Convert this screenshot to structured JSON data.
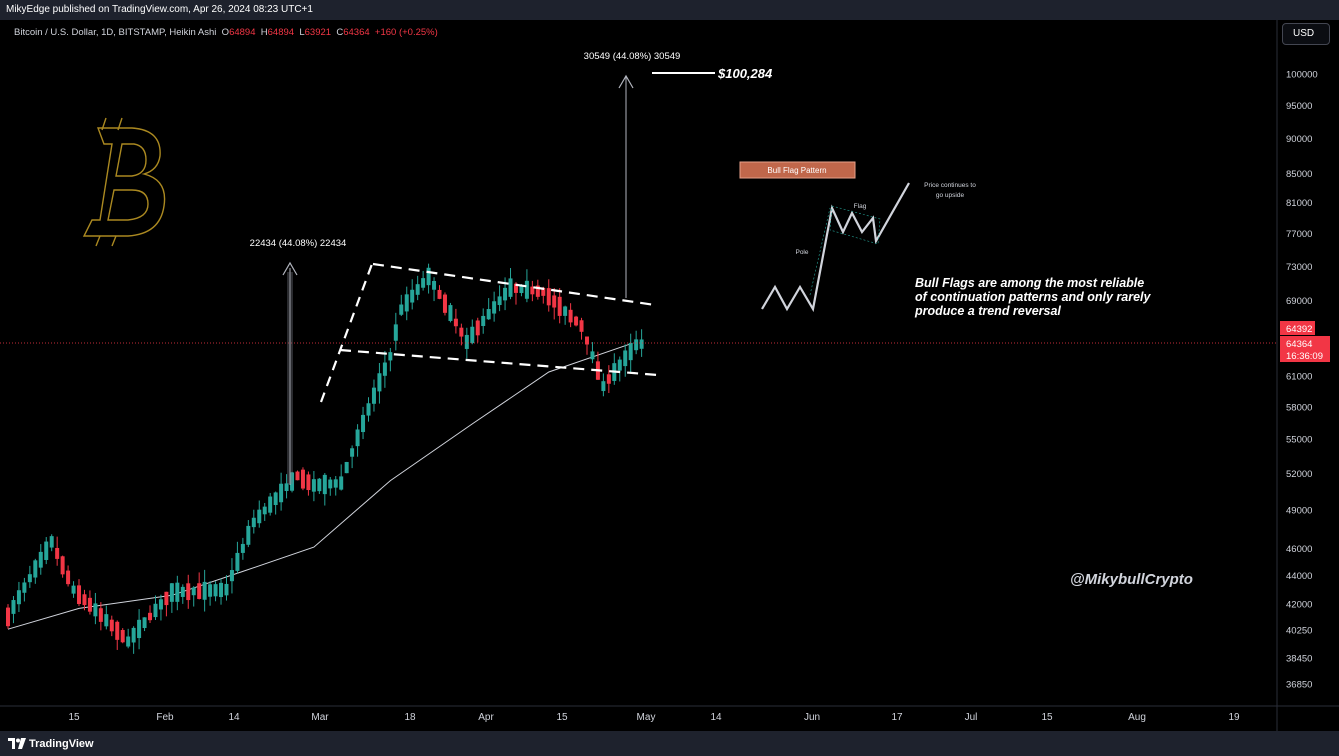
{
  "header": {
    "publisher": "MikyEdge published on TradingView.com, Apr 26, 2024 08:23 UTC+1"
  },
  "legend": {
    "symbol": "Bitcoin / U.S. Dollar, 1D, BITSTAMP, Heikin Ashi",
    "open_label": "O",
    "open": "64894",
    "high_label": "H",
    "high": "64894",
    "low_label": "L",
    "low": "63921",
    "close_label": "C",
    "close": "64364",
    "change": "+160 (+0.25%)"
  },
  "currency_button": "USD",
  "footer": {
    "brand": "TradingView"
  },
  "colors": {
    "up": "#26a69a",
    "down": "#f23645",
    "ma": "#d1d4dc",
    "background": "#000000",
    "price_tag": "#f23645"
  },
  "annotations": {
    "pole_measure": "22434 (44.08%) 22434",
    "target_measure": "30549 (44.08%) 30549",
    "target_price": "$100,284",
    "pattern_title": "Bull Flag Pattern",
    "diagram_pole": "Pole",
    "diagram_flag": "Flag",
    "diagram_continue": [
      "Price continues to",
      "go upside"
    ],
    "description": [
      "Bull Flags are among the most reliable",
      "of continuation patterns and only rarely",
      "produce a trend reversal"
    ],
    "watermark": "@MikybullCrypto"
  },
  "price_tags": {
    "last": "64392",
    "close": "64364",
    "countdown": "16:36:09"
  },
  "chart_data": {
    "type": "candlestick",
    "title": "Bitcoin / U.S. Dollar, 1D, BITSTAMP, Heikin Ashi",
    "y_scale": "log",
    "ylim": [
      35500,
      108000
    ],
    "y_ticks": [
      "100000",
      "95000",
      "90000",
      "85000",
      "81000",
      "77000",
      "73000",
      "69000",
      "61000",
      "58000",
      "55000",
      "52000",
      "49000",
      "46000",
      "44000",
      "42000",
      "40250",
      "38450",
      "36850"
    ],
    "x_ticks": [
      "15",
      "Feb",
      "14",
      "Mar",
      "18",
      "Apr",
      "15",
      "May",
      "14",
      "Jun",
      "17",
      "Jul",
      "15",
      "Aug",
      "19"
    ],
    "x_range": [
      "2024-01-02",
      "2024-08-27"
    ],
    "last_close": 64364,
    "ma_approx": [
      {
        "date": "2024-01-02",
        "value": 40300
      },
      {
        "date": "2024-01-15",
        "value": 41700
      },
      {
        "date": "2024-02-01",
        "value": 42600
      },
      {
        "date": "2024-02-14",
        "value": 44300
      },
      {
        "date": "2024-02-27",
        "value": 46100
      },
      {
        "date": "2024-03-12",
        "value": 51400
      },
      {
        "date": "2024-03-27",
        "value": 56400
      },
      {
        "date": "2024-04-10",
        "value": 61400
      },
      {
        "date": "2024-04-25",
        "value": 64300
      }
    ],
    "flag_channel": {
      "upper": [
        {
          "date": "2024-03-12",
          "value": 73500
        },
        {
          "date": "2024-04-30",
          "value": 68000
        }
      ],
      "lower": [
        {
          "date": "2024-03-04",
          "value": 63300
        },
        {
          "date": "2024-04-30",
          "value": 60400
        }
      ]
    },
    "pole_move": {
      "from": 50900,
      "to": 73300,
      "change": 22434,
      "percent": 44.08
    },
    "target_move": {
      "from": 69700,
      "to": 100284,
      "change": 30549,
      "percent": 44.08
    }
  }
}
